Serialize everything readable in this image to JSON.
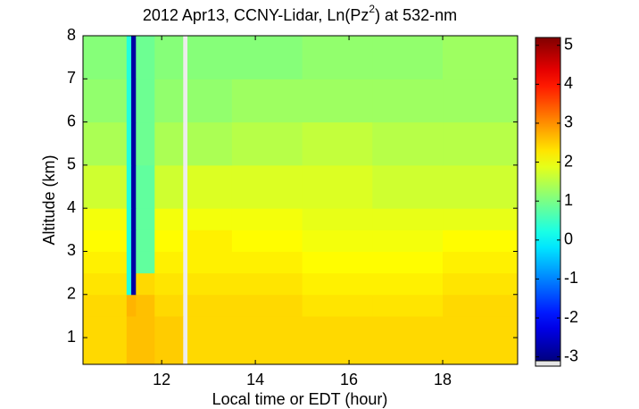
{
  "chart_data": {
    "type": "heatmap",
    "title": [
      "2012 Apr13, CCNY-Lidar, Ln(Pz",
      "2",
      ") at 532-nm"
    ],
    "x_label": "Local time or EDT (hour)",
    "y_label": "Altitude (km)",
    "x_edges": [
      10.32,
      11.25,
      11.35,
      11.45,
      11.85,
      12.45,
      12.55,
      13.5,
      15,
      16.5,
      18,
      19.6
    ],
    "y_edges": [
      0.38,
      1,
      1.5,
      2,
      2.5,
      3,
      3.5,
      4,
      5,
      6,
      7,
      8
    ],
    "z": [
      [
        2.4,
        2.6,
        2.6,
        2.6,
        2.5,
        null,
        2.4,
        2.4,
        2.4,
        2.4,
        2.4
      ],
      [
        2.4,
        2.6,
        2.6,
        2.6,
        2.5,
        null,
        2.4,
        2.4,
        2.4,
        2.4,
        2.4
      ],
      [
        2.4,
        2.7,
        2.7,
        2.6,
        2.4,
        null,
        2.4,
        2.4,
        2.3,
        2.3,
        2.4
      ],
      [
        2.3,
        0.3,
        -2.8,
        2.4,
        2.3,
        null,
        2.3,
        2.3,
        2.2,
        2.2,
        2.3
      ],
      [
        2.2,
        0.3,
        -2.8,
        0.8,
        2.2,
        null,
        2.2,
        2.2,
        2.1,
        2.1,
        2.2
      ],
      [
        2.1,
        0.3,
        -2.8,
        0.8,
        2.1,
        null,
        2.2,
        2.1,
        2.0,
        2.0,
        2.1
      ],
      [
        2.0,
        0.3,
        -2.8,
        0.8,
        2.0,
        null,
        2.0,
        2.0,
        1.9,
        1.9,
        1.9
      ],
      [
        1.7,
        0.3,
        -2.8,
        0.8,
        1.7,
        null,
        1.8,
        1.8,
        1.8,
        1.7,
        1.7
      ],
      [
        1.4,
        0.3,
        -2.8,
        0.9,
        1.4,
        null,
        1.4,
        1.5,
        1.6,
        1.5,
        1.5
      ],
      [
        1.2,
        0.3,
        -2.8,
        0.9,
        1.2,
        null,
        1.2,
        1.3,
        1.3,
        1.3,
        1.3
      ],
      [
        1.1,
        0.3,
        -2.8,
        0.9,
        1.1,
        null,
        1.1,
        1.1,
        1.2,
        1.2,
        1.3
      ]
    ],
    "colormap": "jet",
    "xlim": [
      10.32,
      19.6
    ],
    "xticks": [
      12,
      14,
      16,
      18
    ],
    "ylim": [
      0.38,
      8
    ],
    "yticks": [
      1,
      2,
      3,
      4,
      5,
      6,
      7,
      8
    ],
    "clim": [
      -3.1,
      5.2
    ],
    "cticks": [
      -3,
      -2,
      -1,
      0,
      1,
      2,
      3,
      4,
      5
    ]
  }
}
